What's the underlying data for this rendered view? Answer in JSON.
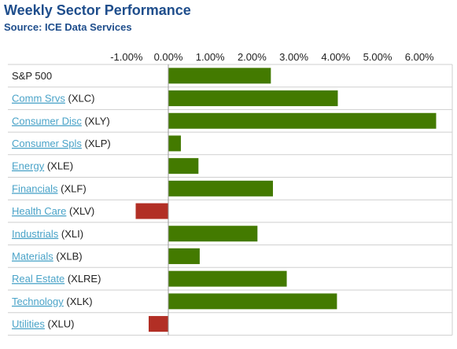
{
  "title": "Weekly Sector Performance",
  "source": "Source: ICE Data Services",
  "colors": {
    "positive": "#437a00",
    "negative": "#b22f25",
    "grid": "#cfcfcf",
    "link": "#4aa3c8"
  },
  "chart_data": {
    "type": "bar",
    "orientation": "horizontal",
    "xlim": [
      -1.5,
      6.5
    ],
    "ticks": [
      -1,
      0,
      1,
      2,
      3,
      4,
      5,
      6
    ],
    "tick_labels": [
      "-1.00%",
      "0.00%",
      "1.00%",
      "2.00%",
      "3.00%",
      "4.00%",
      "5.00%",
      "6.00%"
    ],
    "categories": [
      {
        "name": "S&P 500",
        "ticker": "",
        "linked": false
      },
      {
        "name": "Comm Srvs",
        "ticker": "(XLC)",
        "linked": true
      },
      {
        "name": "Consumer Disc",
        "ticker": "(XLY)",
        "linked": true
      },
      {
        "name": "Consumer Spls",
        "ticker": "(XLP)",
        "linked": true
      },
      {
        "name": "Energy",
        "ticker": "(XLE)",
        "linked": true
      },
      {
        "name": "Financials",
        "ticker": "(XLF)",
        "linked": true
      },
      {
        "name": "Health Care",
        "ticker": "(XLV)",
        "linked": true
      },
      {
        "name": "Industrials",
        "ticker": "(XLI)",
        "linked": true
      },
      {
        "name": "Materials",
        "ticker": "(XLB)",
        "linked": true
      },
      {
        "name": "Real Estate",
        "ticker": "(XLRE)",
        "linked": true
      },
      {
        "name": "Technology",
        "ticker": "(XLK)",
        "linked": true
      },
      {
        "name": "Utilities",
        "ticker": "(XLU)",
        "linked": true
      }
    ],
    "values": [
      2.45,
      4.05,
      6.4,
      0.3,
      0.72,
      2.5,
      -0.78,
      2.13,
      0.75,
      2.83,
      4.03,
      -0.47
    ],
    "grid": true,
    "legend": "none"
  }
}
